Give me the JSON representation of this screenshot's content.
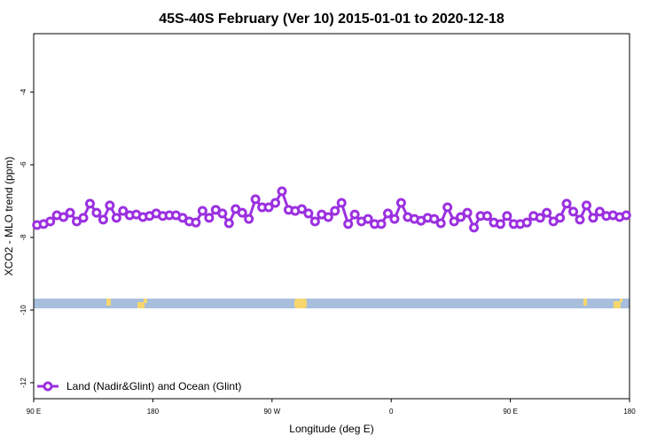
{
  "chart_data": {
    "type": "line",
    "title": "45S-40S February (Ver 10)   2015-01-01 to 2020-12-18",
    "x_label": "Longitude (deg E)",
    "y_label": "XCO2 - MLO trend (ppm)",
    "xlim": [
      90,
      540
    ],
    "ylim": [
      -12.44,
      -2.39
    ],
    "xticks": [
      {
        "value": 90,
        "label": "90 E"
      },
      180,
      {
        "value": 270,
        "label": "90 W"
      },
      {
        "value": 360,
        "label": "0"
      },
      {
        "value": 450,
        "label": "90 E"
      },
      {
        "value": 540,
        "label": "180"
      }
    ],
    "yticks": [
      -4,
      -6,
      -8,
      -10,
      -12
    ],
    "legend": "bottom-left",
    "x": [
      92.5,
      97.5,
      102.5,
      107.5,
      112.5,
      117.5,
      122.5,
      127.5,
      132.5,
      137.5,
      142.5,
      147.5,
      152.5,
      157.5,
      162.5,
      167.5,
      172.5,
      177.5,
      182.5,
      187.5,
      192.5,
      197.5,
      202.5,
      207.5,
      212.5,
      217.5,
      222.5,
      227.5,
      232.5,
      237.5,
      242.5,
      247.5,
      252.5,
      257.5,
      262.5,
      267.5,
      272.5,
      277.5,
      282.5,
      287.5,
      292.5,
      297.5,
      302.5,
      307.5,
      312.5,
      317.5,
      322.5,
      327.5,
      332.5,
      337.5,
      342.5,
      347.5,
      352.5,
      357.5,
      362.5,
      367.5,
      372.5,
      377.5,
      382.5,
      387.5,
      392.5,
      397.5,
      402.5,
      407.5,
      412.5,
      417.5,
      422.5,
      427.5,
      432.5,
      437.5,
      442.5,
      447.5,
      452.5,
      457.5,
      462.5,
      467.5,
      472.5,
      477.5,
      482.5,
      487.5,
      492.5,
      497.5,
      502.5,
      507.5,
      512.5,
      517.5,
      522.5,
      527.5,
      532.5,
      537.5
    ],
    "series": [
      {
        "name": "Land (Nadir&Glint) and Ocean (Glint)",
        "color": "#9b30e0",
        "values": [
          -7.66,
          -7.63,
          -7.56,
          -7.39,
          -7.44,
          -7.32,
          -7.56,
          -7.46,
          -7.07,
          -7.32,
          -7.51,
          -7.12,
          -7.46,
          -7.27,
          -7.39,
          -7.37,
          -7.44,
          -7.41,
          -7.34,
          -7.41,
          -7.39,
          -7.39,
          -7.46,
          -7.56,
          -7.59,
          -7.27,
          -7.46,
          -7.24,
          -7.34,
          -7.61,
          -7.22,
          -7.32,
          -7.49,
          -6.95,
          -7.17,
          -7.17,
          -7.05,
          -6.73,
          -7.24,
          -7.27,
          -7.22,
          -7.34,
          -7.56,
          -7.37,
          -7.44,
          -7.27,
          -7.05,
          -7.63,
          -7.37,
          -7.56,
          -7.49,
          -7.63,
          -7.63,
          -7.34,
          -7.49,
          -7.05,
          -7.44,
          -7.49,
          -7.54,
          -7.46,
          -7.49,
          -7.61,
          -7.17,
          -7.56,
          -7.44,
          -7.32,
          -7.73,
          -7.41,
          -7.41,
          -7.59,
          -7.63,
          -7.41,
          -7.63,
          -7.63,
          -7.59,
          -7.41,
          -7.46,
          -7.32,
          -7.56,
          -7.46,
          -7.07,
          -7.29,
          -7.51,
          -7.12,
          -7.46,
          -7.29,
          -7.41,
          -7.39,
          -7.44,
          -7.39
        ]
      }
    ]
  }
}
